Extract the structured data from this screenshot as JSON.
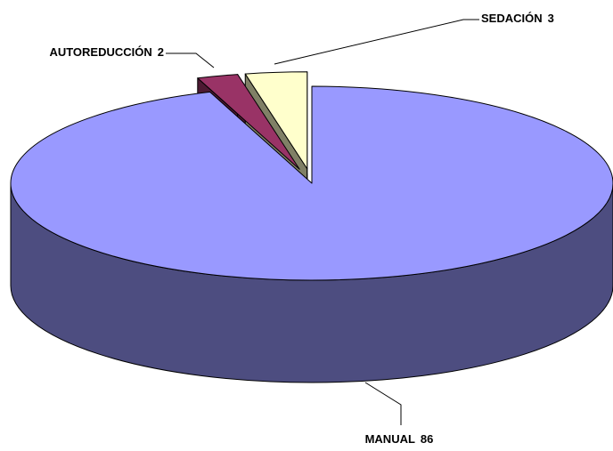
{
  "chart_data": {
    "type": "pie3d",
    "categories": [
      "MANUAL",
      "AUTOREDUCCIÓN",
      "SEDACIÓN"
    ],
    "values": [
      86,
      2,
      3
    ],
    "colors": [
      "#9999ff",
      "#993366",
      "#ffffcc"
    ]
  }
}
